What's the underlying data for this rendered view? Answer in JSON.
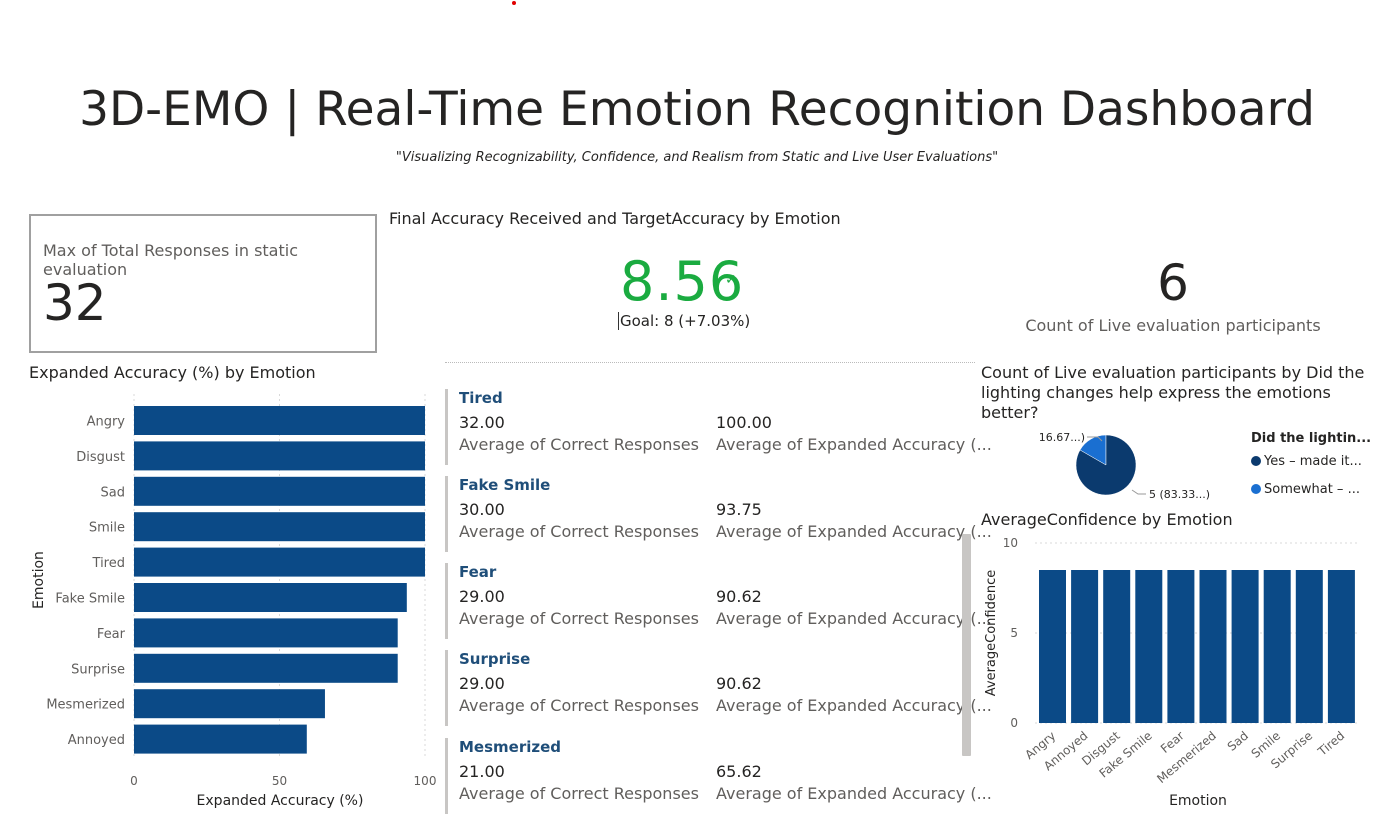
{
  "header": {
    "title": "3D-EMO | Real-Time Emotion Recognition Dashboard",
    "subtitle": "\"Visualizing Recognizability, Confidence, and Realism from Static and Live User Evaluations\""
  },
  "card_total": {
    "label": "Max of Total Responses in static evaluation",
    "value": "32"
  },
  "kpi": {
    "title": "Final Accuracy Received and TargetAccuracy by Emotion",
    "value": "8.56",
    "check": "✓",
    "goal": "Goal: 8 (+7.03%)"
  },
  "count_card": {
    "value": "6",
    "label": "Count of Live evaluation participants"
  },
  "multirow": {
    "rows": [
      {
        "title": "Tired",
        "v1": "32.00",
        "l1": "Average of Correct Responses",
        "v2": "100.00",
        "l2": "Average of Expanded Accuracy (..."
      },
      {
        "title": "Fake Smile",
        "v1": "30.00",
        "l1": "Average of Correct Responses",
        "v2": "93.75",
        "l2": "Average of Expanded Accuracy (..."
      },
      {
        "title": "Fear",
        "v1": "29.00",
        "l1": "Average of Correct Responses",
        "v2": "90.62",
        "l2": "Average of Expanded Accuracy (..."
      },
      {
        "title": "Surprise",
        "v1": "29.00",
        "l1": "Average of Correct Responses",
        "v2": "90.62",
        "l2": "Average of Expanded Accuracy (..."
      },
      {
        "title": "Mesmerized",
        "v1": "21.00",
        "l1": "Average of Correct Responses",
        "v2": "65.62",
        "l2": "Average of Expanded Accuracy (..."
      }
    ]
  },
  "pie": {
    "title": "Count of Live evaluation participants by Did the lighting changes help express the emotions better?",
    "legend_title": "Did the lightin...",
    "legend": [
      {
        "label": "Yes – made it...",
        "color": "#0b3a6e"
      },
      {
        "label": "Somewhat – ...",
        "color": "#1a6fd1"
      }
    ],
    "label_small": "1 (16.67...)",
    "label_large": "5 (83.33...)"
  },
  "chart_data": [
    {
      "type": "bar",
      "orientation": "horizontal",
      "title": "Expanded Accuracy (%) by Emotion",
      "xlabel": "Expanded Accuracy (%)",
      "ylabel": "Emotion",
      "categories": [
        "Angry",
        "Disgust",
        "Sad",
        "Smile",
        "Tired",
        "Fake Smile",
        "Fear",
        "Surprise",
        "Mesmerized",
        "Annoyed"
      ],
      "values": [
        100,
        100,
        100,
        100,
        100,
        93.75,
        90.62,
        90.62,
        65.62,
        59.38
      ],
      "xlim": [
        0,
        100
      ],
      "xticks": [
        "0",
        "50",
        "100"
      ],
      "grid": true,
      "color": "#0b4a87"
    },
    {
      "type": "pie",
      "title": "Count of Live evaluation participants by Did the lighting changes help express the emotions better?",
      "categories": [
        "Yes – made it...",
        "Somewhat – ..."
      ],
      "values": [
        5,
        1
      ],
      "colors": [
        "#0b3a6e",
        "#1a6fd1"
      ]
    },
    {
      "type": "bar",
      "title": "AverageConfidence by Emotion",
      "xlabel": "Emotion",
      "ylabel": "AverageConfidence",
      "categories": [
        "Angry",
        "Annoyed",
        "Disgust",
        "Fake Smile",
        "Fear",
        "Mesmerized",
        "Sad",
        "Smile",
        "Surprise",
        "Tired"
      ],
      "values": [
        8.5,
        8.5,
        8.5,
        8.5,
        8.5,
        8.5,
        8.5,
        8.5,
        8.5,
        8.5
      ],
      "ylim": [
        0,
        10
      ],
      "yticks": [
        "0",
        "5",
        "10"
      ],
      "grid": true,
      "color": "#0b4a87"
    }
  ]
}
